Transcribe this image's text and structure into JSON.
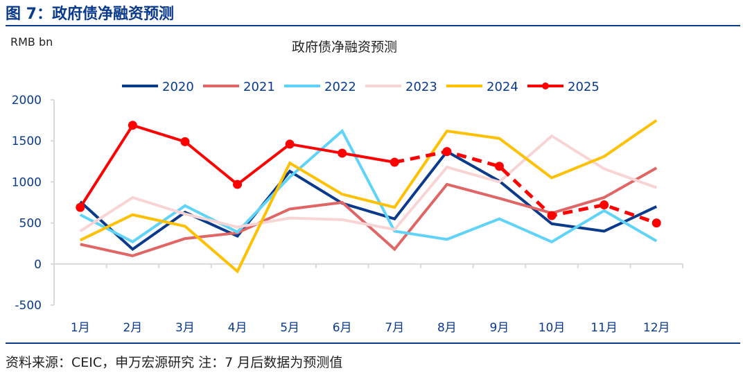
{
  "figure_title": "图 7：政府债净融资预测",
  "source": "资料来源：CEIC，申万宏源研究  注：7 月后数据为预测值",
  "chart_data": {
    "type": "line",
    "title": "政府债净融资预测",
    "ylabel": "RMB bn",
    "ylim": [
      -500,
      2000
    ],
    "yticks": [
      2000,
      1500,
      1000,
      500,
      0,
      -500
    ],
    "grid": false,
    "legend": "top",
    "categories": [
      "1月",
      "2月",
      "3月",
      "4月",
      "5月",
      "6月",
      "7月",
      "8月",
      "9月",
      "10月",
      "11月",
      "12月"
    ],
    "forecast_from": "7月",
    "series": [
      {
        "name": "2020",
        "color": "#0a3a8c",
        "values": [
          760,
          180,
          630,
          340,
          1130,
          740,
          550,
          1370,
          1010,
          490,
          400,
          700
        ]
      },
      {
        "name": "2021",
        "color": "#e06666",
        "values": [
          240,
          100,
          310,
          380,
          670,
          750,
          180,
          970,
          800,
          620,
          810,
          1170
        ]
      },
      {
        "name": "2022",
        "color": "#5fd3f8",
        "values": [
          600,
          270,
          710,
          390,
          1060,
          1620,
          400,
          300,
          550,
          270,
          650,
          280
        ]
      },
      {
        "name": "2023",
        "color": "#f8d4d4",
        "values": [
          400,
          810,
          610,
          450,
          560,
          540,
          420,
          1180,
          1000,
          1560,
          1160,
          930
        ]
      },
      {
        "name": "2024",
        "color": "#ffc000",
        "values": [
          290,
          600,
          460,
          -90,
          1230,
          850,
          690,
          1620,
          1530,
          1050,
          1310,
          1750
        ]
      },
      {
        "name": "2025",
        "color": "#ff0000",
        "markers": true,
        "values": [
          690,
          1690,
          1490,
          970,
          1460,
          1350,
          1240,
          1370,
          1190,
          590,
          720,
          500
        ]
      }
    ]
  }
}
